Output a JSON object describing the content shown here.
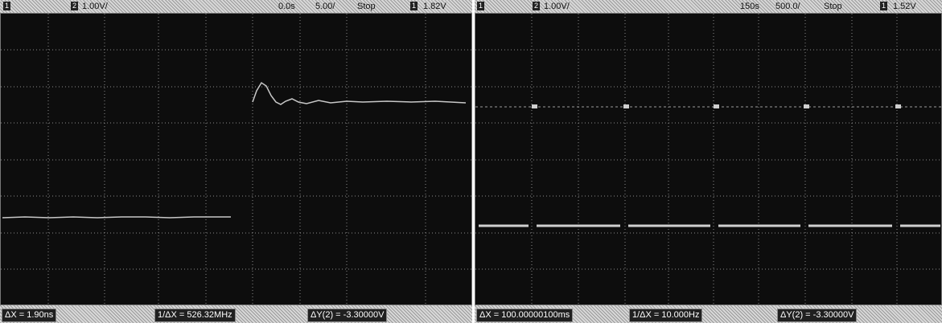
{
  "left_scope": {
    "toolbar": {
      "ch1_box": "1",
      "ch2_box": "2",
      "volts_div": "1.00V/",
      "delay": "0.0s",
      "time_div": "5.00/",
      "run_state": "Stop",
      "trig_box": "1",
      "trig_level": "1.82V"
    },
    "measurements": {
      "delta_x": "ΔX = 1.90ns",
      "inverse_delta_x": "1/ΔX = 526.32MHz",
      "delta_y": "ΔY(2) = -3.30000V"
    }
  },
  "right_scope": {
    "toolbar": {
      "ch1_box": "1",
      "ch2_box": "2",
      "volts_div": "1.00V/",
      "delay": "150s",
      "time_div": "500.0/",
      "run_state": "Stop",
      "trig_box": "1",
      "trig_level": "1.52V"
    },
    "measurements": {
      "delta_x": "ΔX = 100.00000100ms",
      "inverse_delta_x": "1/ΔX = 10.000Hz",
      "delta_y": "ΔY(2) = -3.30000V"
    }
  },
  "colors": {
    "screen_bg": "#0d0d0d",
    "grid": "#8a8a8a",
    "trace": "#c8c8c8"
  }
}
